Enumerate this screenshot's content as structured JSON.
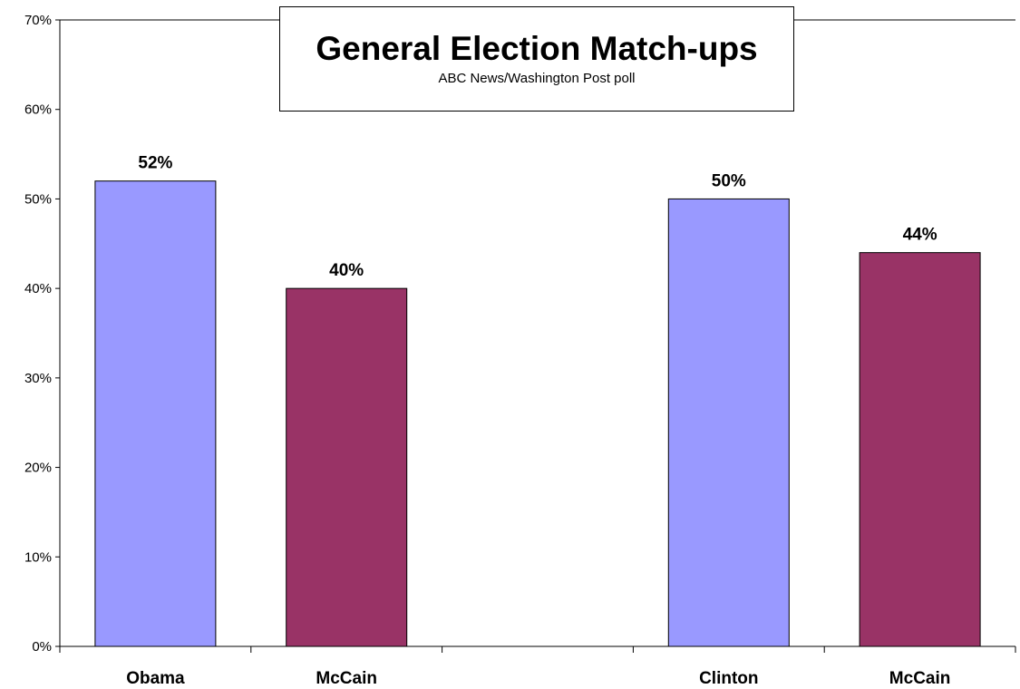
{
  "chart_data": {
    "type": "bar",
    "title": "General Election Match-ups",
    "subtitle": "ABC News/Washington Post poll",
    "categories": [
      "Obama",
      "McCain",
      "",
      "Clinton",
      "McCain"
    ],
    "values": [
      52,
      40,
      null,
      50,
      44
    ],
    "value_labels": [
      "52%",
      "40%",
      "",
      "50%",
      "44%"
    ],
    "bar_colors": [
      "#9999ff",
      "#993366",
      "",
      "#9999ff",
      "#993366"
    ],
    "ylim": [
      0,
      70
    ],
    "yticks": [
      0,
      10,
      20,
      30,
      40,
      50,
      60,
      70
    ],
    "ytick_labels": [
      "0%",
      "10%",
      "20%",
      "30%",
      "40%",
      "50%",
      "60%",
      "70%"
    ],
    "xlabel": "",
    "ylabel": "",
    "grid": false,
    "legend": false
  }
}
